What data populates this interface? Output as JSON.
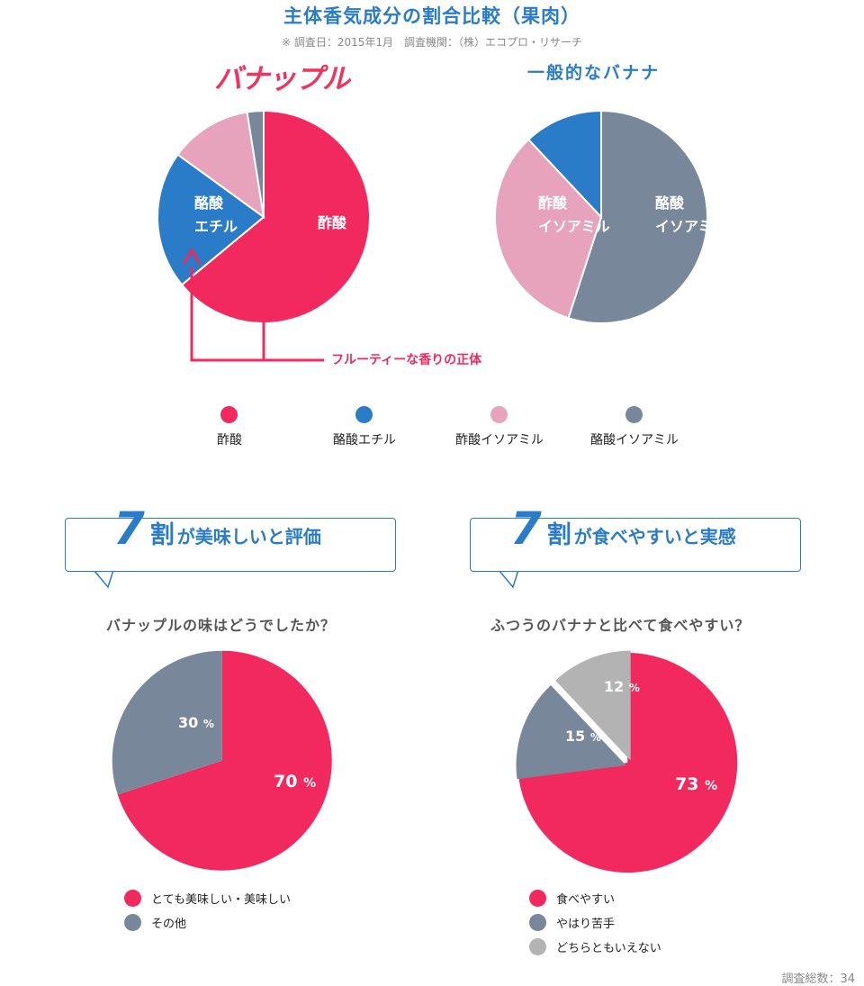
{
  "header": {
    "title": "主体香気成分の割合比較（果肉）",
    "note": "※ 調査日：2015年1月　調査機関：（株）エコプロ・リサーチ"
  },
  "colors": {
    "pink": "#f2295e",
    "blue": "#2a7bc8",
    "light_pink": "#e6a3bb",
    "slate": "#78879a",
    "gray": "#b3b3b3"
  },
  "annotation": {
    "text": "フルーティーな香りの正体"
  },
  "legend_top": [
    {
      "label": "酢酸",
      "color": "#f2295e"
    },
    {
      "label": "酪酸エチル",
      "color": "#2a7bc8"
    },
    {
      "label": "酢酸イソアミル",
      "color": "#e6a3bb"
    },
    {
      "label": "酪酸イソアミル",
      "color": "#78879a"
    }
  ],
  "bubbles": [
    {
      "num": "7",
      "kanji": "割",
      "rest": "が美味しいと評価"
    },
    {
      "num": "7",
      "kanji": "割",
      "rest": "が食べやすいと実感"
    }
  ],
  "questions": [
    "バナップルの味はどうでしたか？",
    "ふつうのバナナと比べて食べやすい？"
  ],
  "footer": "調査総数：34",
  "chart_data": [
    {
      "type": "pie",
      "title": "バナップル",
      "start_angle": 0,
      "labels": [
        "酢酸",
        "酪酸エチル",
        "酢酸イソアミル",
        "酪酸イソアミル"
      ],
      "slice_labels": [
        "酢酸",
        "酪酸\nエチル",
        "",
        ""
      ],
      "values": [
        64,
        21,
        12.5,
        2.5
      ],
      "colors": [
        "#f2295e",
        "#2a7bc8",
        "#e6a3bb",
        "#78879a"
      ]
    },
    {
      "type": "pie",
      "title": "一般的なバナナ",
      "start_angle": 0,
      "labels": [
        "酪酸イソアミル",
        "酢酸イソアミル",
        "酪酸エチル"
      ],
      "slice_labels": [
        "酪酸\nイソアミル",
        "酢酸\nイソアミル",
        ""
      ],
      "values": [
        55,
        33,
        12
      ],
      "colors": [
        "#78879a",
        "#e6a3bb",
        "#2a7bc8"
      ]
    },
    {
      "type": "pie",
      "title": "バナップルの味はどうでしたか？",
      "start_angle": 0,
      "labels": [
        "とても美味しい・美味しい",
        "その他"
      ],
      "slice_labels": [
        "70 %",
        "30 %"
      ],
      "values": [
        70,
        30
      ],
      "colors": [
        "#f2295e",
        "#78879a"
      ],
      "exploded": true
    },
    {
      "type": "pie",
      "title": "ふつうのバナナと比べて食べやすい？",
      "start_angle": 0,
      "labels": [
        "食べやすい",
        "やはり苦手",
        "どちらともいえない"
      ],
      "slice_labels": [
        "73 %",
        "15 %",
        "12 %"
      ],
      "values": [
        73,
        15,
        12
      ],
      "colors": [
        "#f2295e",
        "#78879a",
        "#b3b3b3"
      ],
      "exploded": true
    }
  ],
  "legends_bottom": [
    [
      {
        "label": "とても美味しい・美味しい",
        "color": "#f2295e"
      },
      {
        "label": "その他",
        "color": "#78879a"
      }
    ],
    [
      {
        "label": "食べやすい",
        "color": "#f2295e"
      },
      {
        "label": "やはり苦手",
        "color": "#78879a"
      },
      {
        "label": "どちらともいえない",
        "color": "#b3b3b3"
      }
    ]
  ]
}
